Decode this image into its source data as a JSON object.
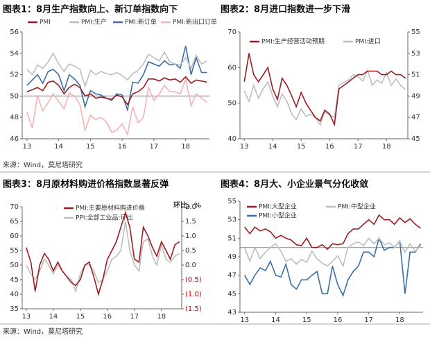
{
  "source_top": "来源：Wind，莫尼塔研究",
  "source_bottom": "来源：Wind，莫尼塔研究",
  "chart_data": [
    {
      "type": "line",
      "title": "图表1：8月生产指数向上、新订单指数向下",
      "x": [
        13,
        13.17,
        13.33,
        13.5,
        13.67,
        13.83,
        14,
        14.17,
        14.33,
        14.5,
        14.67,
        14.83,
        15,
        15.17,
        15.33,
        15.5,
        15.67,
        15.83,
        16,
        16.17,
        16.33,
        16.5,
        16.67,
        16.83,
        17,
        17.17,
        17.33,
        17.5,
        17.67,
        17.83,
        18,
        18.17,
        18.33,
        18.5,
        18.67
      ],
      "xlim": [
        12.85,
        18.75
      ],
      "xticks": [
        13,
        14,
        15,
        16,
        17,
        18
      ],
      "ylim": [
        46,
        56
      ],
      "yticks": [
        46,
        48,
        50,
        52,
        54,
        56
      ],
      "refline": 50,
      "series": [
        {
          "name": "PMI",
          "color": "#9b1b1e",
          "values": [
            50.4,
            50.6,
            50.8,
            50.5,
            51.3,
            51.4,
            51.0,
            50.2,
            50.8,
            51.1,
            50.8,
            50.0,
            50.2,
            49.8,
            49.9,
            49.8,
            49.7,
            50.1,
            49.9,
            49.2,
            50.2,
            50.4,
            50.8,
            51.6,
            51.6,
            51.4,
            51.7,
            51.5,
            51.6,
            51.3,
            51.8,
            51.2,
            51.5,
            51.4,
            51.3
          ]
        },
        {
          "name": "PMI:生产",
          "color": "#bdbdbd",
          "values": [
            52.5,
            52.0,
            52.9,
            52.6,
            53.2,
            54.0,
            53.0,
            52.3,
            53.0,
            52.8,
            52.5,
            50.9,
            52.4,
            52.0,
            52.3,
            52.1,
            52.0,
            52.2,
            51.9,
            51.5,
            52.1,
            52.4,
            53.0,
            53.9,
            53.6,
            53.3,
            54.1,
            53.2,
            53.0,
            52.9,
            53.6,
            52.6,
            53.8,
            53.0,
            53.3
          ]
        },
        {
          "name": "PMI:新订单",
          "color": "#3a6ea5",
          "values": [
            51.0,
            51.5,
            52.0,
            51.2,
            52.3,
            52.5,
            52.0,
            50.5,
            52.0,
            51.6,
            51.0,
            49.0,
            50.5,
            50.2,
            50.1,
            49.8,
            49.6,
            50.2,
            50.1,
            48.7,
            51.3,
            51.2,
            52.0,
            53.2,
            53.0,
            52.8,
            53.3,
            52.9,
            53.0,
            52.6,
            54.7,
            52.0,
            53.6,
            52.2,
            52.2
          ]
        },
        {
          "name": "PMI:新出口订单",
          "color": "#f2b3b3",
          "values": [
            48.5,
            47.0,
            50.0,
            48.6,
            49.4,
            50.2,
            49.5,
            48.8,
            50.3,
            50.0,
            49.2,
            46.8,
            48.2,
            47.8,
            48.0,
            47.6,
            46.6,
            46.8,
            47.4,
            46.4,
            49.0,
            47.5,
            48.0,
            50.8,
            49.6,
            50.2,
            51.0,
            50.4,
            50.4,
            50.2,
            51.6,
            49.1,
            50.2,
            49.8,
            49.4
          ]
        }
      ]
    },
    {
      "type": "line",
      "title": "图表2：8月进口指数进一步下滑",
      "x": [
        13,
        13.17,
        13.33,
        13.5,
        13.67,
        13.83,
        14,
        14.17,
        14.33,
        14.5,
        14.67,
        14.83,
        15,
        15.17,
        15.33,
        15.5,
        15.67,
        15.83,
        16,
        16.17,
        16.33,
        16.5,
        16.67,
        16.83,
        17,
        17.17,
        17.33,
        17.5,
        17.67,
        17.83,
        18,
        18.17,
        18.33,
        18.5,
        18.67
      ],
      "xlim": [
        12.85,
        18.75
      ],
      "xticks": [
        13,
        14,
        15,
        16,
        17,
        18
      ],
      "ylim": [
        40,
        70
      ],
      "yticks": [
        40,
        50,
        60,
        70
      ],
      "y2lim": [
        45,
        55
      ],
      "y2ticks": [
        45,
        47,
        49,
        51,
        53,
        55
      ],
      "series": [
        {
          "name": "PMI:生产经营活动预期",
          "color": "#9b1b1e",
          "values": [
            56,
            64,
            58,
            56,
            58,
            60,
            54,
            51,
            57,
            55,
            52,
            49,
            53,
            50,
            48,
            46,
            45,
            48,
            47,
            44,
            54,
            55,
            56,
            57,
            58,
            58,
            59,
            59,
            59,
            58,
            58,
            59,
            58,
            58,
            57
          ]
        },
        {
          "name": "PMI:进口",
          "color": "#bdbdbd",
          "axis": "y2",
          "values": [
            49.5,
            48.5,
            50.0,
            48.8,
            49.7,
            50.3,
            49.0,
            48.0,
            49.2,
            48.5,
            47.3,
            46.8,
            47.8,
            47.1,
            47.3,
            47.0,
            46.3,
            47.5,
            47.2,
            47.0,
            50.0,
            50.3,
            50.5,
            51.0,
            50.8,
            50.4,
            51.4,
            50.0,
            50.5,
            50.2,
            51.2,
            50.0,
            50.6,
            50.0,
            49.6
          ]
        }
      ]
    },
    {
      "type": "line",
      "title": "图表3：8月原材料购进价格指数显著反弹",
      "y2label": "环比，%",
      "x": [
        13,
        13.17,
        13.33,
        13.5,
        13.67,
        13.83,
        14,
        14.17,
        14.33,
        14.5,
        14.67,
        14.83,
        15,
        15.17,
        15.33,
        15.5,
        15.67,
        15.83,
        16,
        16.17,
        16.33,
        16.5,
        16.67,
        16.83,
        17,
        17.17,
        17.33,
        17.5,
        17.67,
        17.83,
        18,
        18.17,
        18.33,
        18.5,
        18.67
      ],
      "xlim": [
        12.85,
        18.75
      ],
      "xticks": [
        13,
        14,
        15,
        16,
        17,
        18
      ],
      "ylim": [
        35,
        70
      ],
      "yticks": [
        35,
        40,
        45,
        50,
        55,
        60,
        65,
        70
      ],
      "y2lim": [
        -1.5,
        2.0
      ],
      "y2ticks": [
        {
          "value": -1.5,
          "label": "(1.5)"
        },
        {
          "value": -1.0,
          "label": "(1.0)"
        },
        {
          "value": -0.5,
          "label": "(0.5)"
        },
        {
          "value": 0,
          "label": "0.0"
        },
        0.5,
        {
          "value": 1.0,
          "label": "1.0"
        },
        1.5,
        {
          "value": 2.0,
          "label": "2.0"
        }
      ],
      "series": [
        {
          "name": "PMI:主要原材料购进价格",
          "color": "#9b1b1e",
          "values": [
            56,
            51,
            41,
            50,
            54,
            52,
            48,
            51,
            48,
            46,
            44,
            43,
            45,
            50,
            51,
            46,
            40,
            45,
            52,
            55,
            58,
            63,
            68,
            63,
            52,
            51,
            63,
            60,
            56,
            53,
            58,
            55,
            52,
            57,
            58
          ]
        },
        {
          "name": "PPI:全部工业品:环比",
          "color": "#bdbdbd",
          "axis": "y2",
          "values": [
            0.0,
            -0.3,
            -0.5,
            -0.2,
            0.2,
            0.0,
            -0.3,
            0.0,
            -0.2,
            -0.4,
            -0.5,
            -0.9,
            -0.3,
            0.0,
            0.0,
            -0.2,
            -0.6,
            -0.5,
            -0.2,
            0.2,
            0.3,
            0.5,
            1.5,
            0.5,
            0.0,
            -0.2,
            0.8,
            0.9,
            0.3,
            0.0,
            0.7,
            0.2,
            0.1,
            0.3,
            0.4
          ]
        }
      ]
    },
    {
      "type": "line",
      "title": "图表4：8月大、小企业景气分化收敛",
      "x": [
        13,
        13.17,
        13.33,
        13.5,
        13.67,
        13.83,
        14,
        14.17,
        14.33,
        14.5,
        14.67,
        14.83,
        15,
        15.17,
        15.33,
        15.5,
        15.67,
        15.83,
        16,
        16.17,
        16.33,
        16.5,
        16.67,
        16.83,
        17,
        17.17,
        17.33,
        17.5,
        17.67,
        17.83,
        18,
        18.17,
        18.33,
        18.5,
        18.67
      ],
      "xlim": [
        12.85,
        18.75
      ],
      "xticks": [
        13,
        14,
        15,
        16,
        17,
        18
      ],
      "ylim": [
        43,
        55
      ],
      "yticks": [
        43,
        45,
        47,
        49,
        51,
        53,
        55
      ],
      "refline": 50,
      "series": [
        {
          "name": "PMI:大型企业",
          "color": "#9b1b1e",
          "values": [
            52.2,
            51.5,
            52.2,
            51.8,
            52.0,
            51.7,
            51.0,
            51.3,
            51.0,
            50.8,
            50.3,
            50.2,
            51.0,
            50.0,
            50.0,
            50.3,
            49.8,
            50.4,
            50.3,
            50.4,
            51.5,
            52.0,
            52.0,
            52.5,
            53.0,
            52.5,
            53.5,
            53.0,
            53.0,
            52.5,
            53.2,
            52.7,
            53.1,
            52.5,
            52.1
          ]
        },
        {
          "name": "PMI:中型企业",
          "color": "#bdbdbd",
          "values": [
            50.0,
            48.5,
            50.0,
            48.8,
            49.5,
            50.0,
            50.4,
            49.6,
            48.5,
            48.8,
            48.2,
            48.7,
            48.4,
            49.6,
            48.8,
            48.3,
            48.0,
            48.5,
            49.1,
            48.0,
            50.0,
            50.4,
            50.6,
            50.2,
            51.0,
            50.4,
            51.0,
            50.3,
            50.5,
            50.0,
            50.7,
            49.5,
            50.4,
            49.6,
            50.2
          ]
        },
        {
          "name": "PMI:小型企业",
          "color": "#3a6ea5",
          "values": [
            47.0,
            46.0,
            47.0,
            47.8,
            47.5,
            48.5,
            47.0,
            46.8,
            48.2,
            46.0,
            45.5,
            46.5,
            46.5,
            47.0,
            47.4,
            45.0,
            45.0,
            48.0,
            46.0,
            44.8,
            46.5,
            47.4,
            48.0,
            49.5,
            49.5,
            49.0,
            51.0,
            49.7,
            50.0,
            50.0,
            50.7,
            45.0,
            49.5,
            49.5,
            50.4
          ]
        }
      ]
    }
  ]
}
